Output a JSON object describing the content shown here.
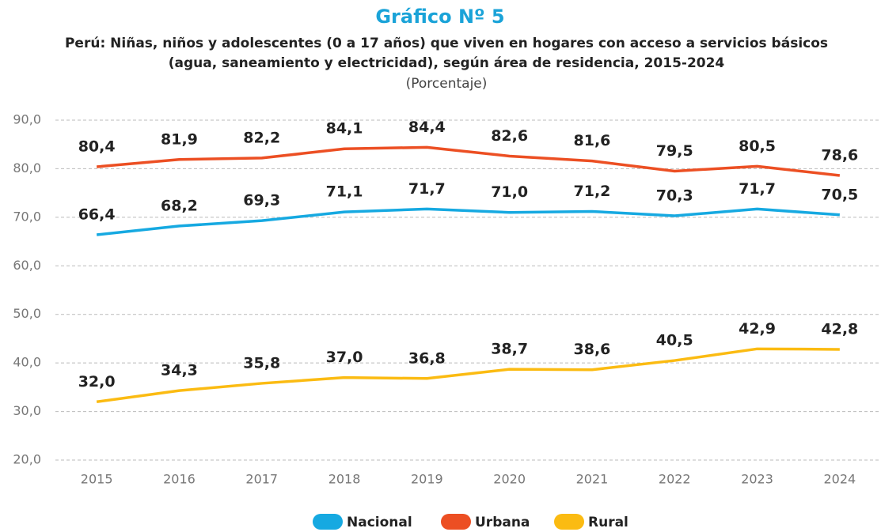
{
  "chart_data": {
    "type": "line",
    "title": "Gráfico Nº 5",
    "subtitle": [
      "Perú: Niñas, niños y adolescentes (0 a 17 años) que viven en hogares con acceso a servicios básicos",
      "(agua, saneamiento y electricidad), según área de residencia, 2015-2024"
    ],
    "unit_note": "(Porcentaje)",
    "categories": [
      "2015",
      "2016",
      "2017",
      "2018",
      "2019",
      "2020",
      "2021",
      "2022",
      "2023",
      "2024"
    ],
    "series": [
      {
        "name": "Nacional",
        "color": "#16a9e1",
        "values": [
          66.4,
          68.2,
          69.3,
          71.1,
          71.7,
          71.0,
          71.2,
          70.3,
          71.7,
          70.5
        ],
        "value_labels": [
          "66,4",
          "68,2",
          "69,3",
          "71,1",
          "71,7",
          "71,0",
          "71,2",
          "70,3",
          "71,7",
          "70,5"
        ]
      },
      {
        "name": "Urbana",
        "color": "#ec4f23",
        "values": [
          80.4,
          81.9,
          82.2,
          84.1,
          84.4,
          82.6,
          81.6,
          79.5,
          80.5,
          78.6
        ],
        "value_labels": [
          "80,4",
          "81,9",
          "82,2",
          "84,1",
          "84,4",
          "82,6",
          "81,6",
          "79,5",
          "80,5",
          "78,6"
        ]
      },
      {
        "name": "Rural",
        "color": "#fbbb12",
        "values": [
          32.0,
          34.3,
          35.8,
          37.0,
          36.8,
          38.7,
          38.6,
          40.5,
          42.9,
          42.8
        ],
        "value_labels": [
          "32,0",
          "34,3",
          "35,8",
          "37,0",
          "36,8",
          "38,7",
          "38,6",
          "40,5",
          "42,9",
          "42,8"
        ]
      }
    ],
    "ylim": [
      20,
      90
    ],
    "yticks": [
      {
        "value": 20,
        "label": "20,0"
      },
      {
        "value": 30,
        "label": "30,0"
      },
      {
        "value": 40,
        "label": "40,0"
      },
      {
        "value": 50,
        "label": "50,0"
      },
      {
        "value": 60,
        "label": "60,0"
      },
      {
        "value": 70,
        "label": "70,0"
      },
      {
        "value": 80,
        "label": "80,0"
      },
      {
        "value": 90,
        "label": "90,0"
      }
    ],
    "grid": true,
    "legend": "bottom"
  }
}
